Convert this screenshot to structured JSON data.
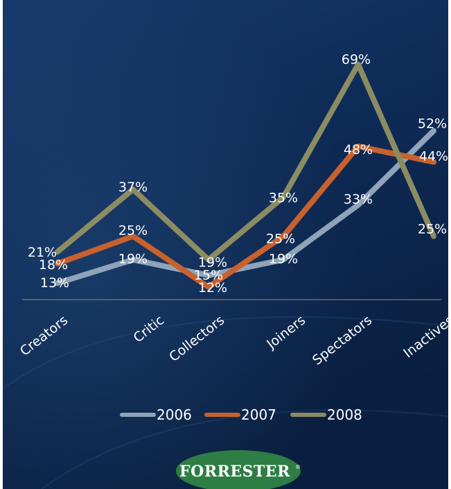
{
  "logo": {
    "text": "FORRESTER",
    "color": "#2e7d45"
  },
  "chart_data": {
    "type": "line",
    "categories": [
      "Creators",
      "Critic",
      "Collectors",
      "Joiners",
      "Spectators",
      "Inactives"
    ],
    "series": [
      {
        "name": "2006",
        "color": "#8fa4b8",
        "values": [
          13,
          19,
          15,
          19,
          33,
          52
        ],
        "labels": [
          "13%",
          "19%",
          "15%",
          "19%",
          "33%",
          "52%"
        ]
      },
      {
        "name": "2007",
        "color": "#c8612c",
        "values": [
          18,
          25,
          12,
          25,
          48,
          44
        ],
        "labels": [
          "18%",
          "25%",
          "12%",
          "25%",
          "48%",
          "44%"
        ]
      },
      {
        "name": "2008",
        "color": "#8c8c62",
        "values": [
          21,
          37,
          19,
          35,
          69,
          25
        ],
        "labels": [
          "21%",
          "37%",
          "19%",
          "35%",
          "69%",
          "25%"
        ]
      }
    ],
    "legend_position": "bottom",
    "grid": false
  }
}
